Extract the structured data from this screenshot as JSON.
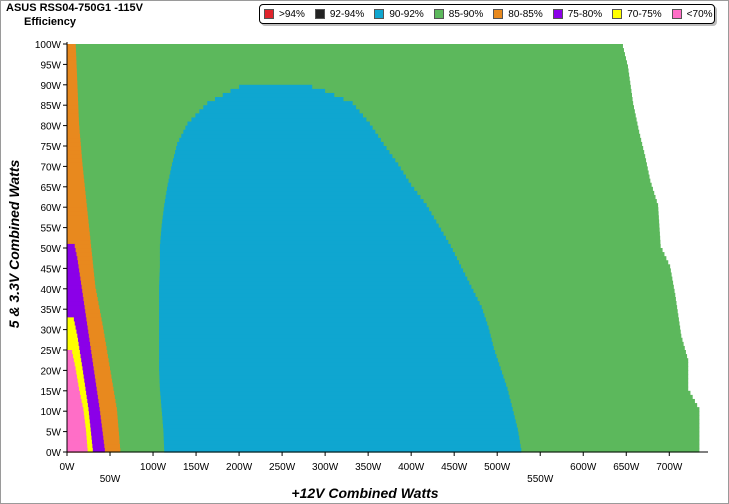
{
  "chart_data": {
    "type": "heatmap",
    "title": "ASUS RSS04-750G1 -115V",
    "subtitle": "Efficiency",
    "xlabel": "+12V Combined Watts",
    "ylabel": "5 & 3.3V Combined Watts",
    "x_ticks_upper": [
      "0W",
      "100W",
      "150W",
      "200W",
      "250W",
      "300W",
      "350W",
      "400W",
      "450W",
      "500W",
      "600W",
      "650W",
      "700W"
    ],
    "x_ticks_upper_values": [
      0,
      100,
      150,
      200,
      250,
      300,
      350,
      400,
      450,
      500,
      600,
      650,
      700
    ],
    "x_ticks_lower": [
      "50W",
      "550W"
    ],
    "x_ticks_lower_values": [
      50,
      550
    ],
    "y_ticks": [
      "0W",
      "5W",
      "10W",
      "15W",
      "20W",
      "25W",
      "30W",
      "35W",
      "40W",
      "45W",
      "50W",
      "55W",
      "60W",
      "65W",
      "70W",
      "75W",
      "80W",
      "85W",
      "90W",
      "95W",
      "100W"
    ],
    "xlim": [
      0,
      745
    ],
    "ylim": [
      0,
      100
    ],
    "legend": [
      {
        "label": ">94%",
        "color": "#e0242c"
      },
      {
        "label": "92-94%",
        "color": "#222222"
      },
      {
        "label": "90-92%",
        "color": "#0fa6d0"
      },
      {
        "label": "85-90%",
        "color": "#5cb85c"
      },
      {
        "label": "80-85%",
        "color": "#e8891e"
      },
      {
        "label": "75-80%",
        "color": "#8b00e8"
      },
      {
        "label": "70-75%",
        "color": "#ffff00"
      },
      {
        "label": "<70%",
        "color": "#ff6ec7"
      }
    ],
    "colors": {
      "green": "#5cb85c",
      "orange": "#e8891e",
      "blue": "#0fa6d0",
      "purple": "#8b00e8",
      "yellow": "#ffff00",
      "pink": "#ff6ec7"
    },
    "outer_boundary": [
      {
        "y": 0,
        "x": 735
      },
      {
        "y": 10,
        "x": 735
      },
      {
        "y": 15,
        "x": 722
      },
      {
        "y": 22,
        "x": 722
      },
      {
        "y": 28,
        "x": 714
      },
      {
        "y": 38,
        "x": 707
      },
      {
        "y": 45,
        "x": 701
      },
      {
        "y": 50,
        "x": 690
      },
      {
        "y": 60,
        "x": 687
      },
      {
        "y": 66,
        "x": 678
      },
      {
        "y": 72,
        "x": 672
      },
      {
        "y": 78,
        "x": 665
      },
      {
        "y": 85,
        "x": 658
      },
      {
        "y": 94,
        "x": 652
      },
      {
        "y": 100,
        "x": 645
      }
    ],
    "orange_right_boundary": [
      {
        "y": 0,
        "x": 62
      },
      {
        "y": 10,
        "x": 58
      },
      {
        "y": 20,
        "x": 50
      },
      {
        "y": 30,
        "x": 42
      },
      {
        "y": 40,
        "x": 33
      },
      {
        "y": 50,
        "x": 28
      },
      {
        "y": 60,
        "x": 23
      },
      {
        "y": 70,
        "x": 18
      },
      {
        "y": 80,
        "x": 14
      },
      {
        "y": 90,
        "x": 12
      },
      {
        "y": 100,
        "x": 10
      }
    ],
    "blue_region": [
      {
        "y": 0,
        "x0": 113,
        "x1": 528
      },
      {
        "y": 5,
        "x0": 112,
        "x1": 524
      },
      {
        "y": 10,
        "x0": 110,
        "x1": 518
      },
      {
        "y": 15,
        "x0": 108,
        "x1": 512
      },
      {
        "y": 20,
        "x0": 107,
        "x1": 504
      },
      {
        "y": 25,
        "x0": 107,
        "x1": 496
      },
      {
        "y": 30,
        "x0": 107,
        "x1": 490
      },
      {
        "y": 35,
        "x0": 107,
        "x1": 482
      },
      {
        "y": 40,
        "x0": 107,
        "x1": 470
      },
      {
        "y": 45,
        "x0": 108,
        "x1": 458
      },
      {
        "y": 50,
        "x0": 108,
        "x1": 446
      },
      {
        "y": 55,
        "x0": 110,
        "x1": 432
      },
      {
        "y": 60,
        "x0": 113,
        "x1": 418
      },
      {
        "y": 65,
        "x0": 117,
        "x1": 400
      },
      {
        "y": 70,
        "x0": 122,
        "x1": 385
      },
      {
        "y": 75,
        "x0": 128,
        "x1": 368
      },
      {
        "y": 80,
        "x0": 140,
        "x1": 352
      },
      {
        "y": 85,
        "x0": 163,
        "x1": 332
      },
      {
        "y": 88,
        "x0": 190,
        "x1": 300
      },
      {
        "y": 90,
        "x0": 210,
        "x1": 270
      }
    ],
    "purple_region": [
      {
        "y": 0,
        "x0": 0,
        "x1": 44
      },
      {
        "y": 10,
        "x0": 0,
        "x1": 38
      },
      {
        "y": 20,
        "x0": 0,
        "x1": 31
      },
      {
        "y": 30,
        "x0": 0,
        "x1": 24
      },
      {
        "y": 40,
        "x0": 0,
        "x1": 17
      },
      {
        "y": 47,
        "x0": 0,
        "x1": 12
      },
      {
        "y": 51,
        "x0": 0,
        "x1": 8
      }
    ],
    "yellow_region": [
      {
        "y": 0,
        "x0": 0,
        "x1": 30
      },
      {
        "y": 10,
        "x0": 0,
        "x1": 25
      },
      {
        "y": 20,
        "x0": 0,
        "x1": 18
      },
      {
        "y": 28,
        "x0": 0,
        "x1": 12
      },
      {
        "y": 33,
        "x0": 0,
        "x1": 7
      }
    ],
    "pink_region": [
      {
        "y": 0,
        "x0": 0,
        "x1": 24
      },
      {
        "y": 5,
        "x0": 0,
        "x1": 22
      },
      {
        "y": 10,
        "x0": 0,
        "x1": 19
      },
      {
        "y": 15,
        "x0": 0,
        "x1": 14
      },
      {
        "y": 20,
        "x0": 0,
        "x1": 10
      },
      {
        "y": 25,
        "x0": 0,
        "x1": 5
      }
    ]
  }
}
